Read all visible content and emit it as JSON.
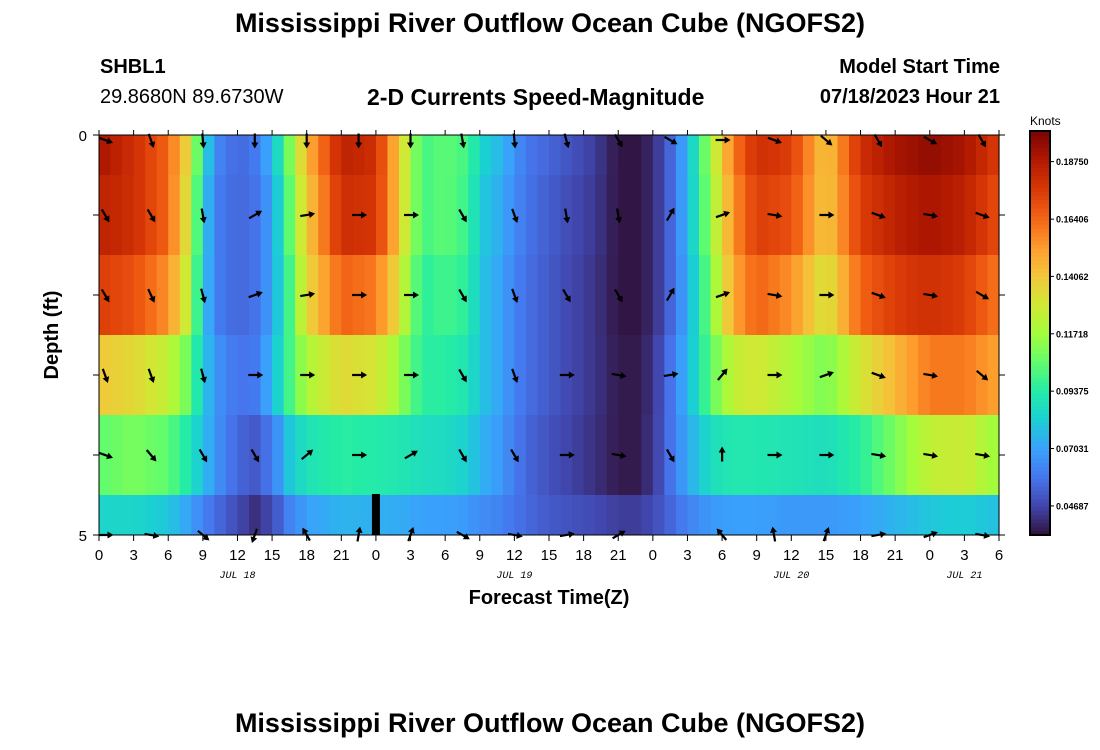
{
  "title": "Mississippi River Outflow Ocean Cube (NGOFS2)",
  "second_title": "Mississippi River Outflow Ocean Cube (NGOFS2)",
  "station": {
    "name": "SHBL1",
    "coords": "29.8680N  89.6730W"
  },
  "plot_title": "2-D Currents Speed-Magnitude",
  "model_start": {
    "label": "Model Start Time",
    "value": "07/18/2023 Hour 21"
  },
  "colors": {
    "arrow": "#000000",
    "now_marker": "#000000"
  },
  "chart_data": {
    "type": "heatmap",
    "xlabel": "Forecast Time(Z)",
    "ylabel": "Depth (ft)",
    "y_ticks": [
      "0",
      "5"
    ],
    "y_range": [
      0,
      5
    ],
    "depth_levels": 5,
    "x_hours_per_tick": 3,
    "x_tick_labels": [
      "0",
      "3",
      "6",
      "9",
      "12",
      "15",
      "18",
      "21",
      "0",
      "3",
      "6",
      "9",
      "12",
      "15",
      "18",
      "21",
      "0",
      "3",
      "6",
      "9",
      "12",
      "15",
      "18",
      "21",
      "0",
      "3",
      "6"
    ],
    "date_labels": [
      {
        "label": "JUL 18",
        "tick_index": 4
      },
      {
        "label": "JUL 19",
        "tick_index": 12
      },
      {
        "label": "JUL 20",
        "tick_index": 20
      },
      {
        "label": "JUL 21",
        "tick_index": 25
      }
    ],
    "now_marker_hour": 24,
    "colorbar": {
      "unit": "Knots",
      "min": 0.035,
      "max": 0.2,
      "tick_values": [
        0.1875,
        0.164,
        0.14062,
        0.11718,
        0.09375,
        0.07031,
        0.04687
      ],
      "tick_labels": [
        "0.18750",
        "0.16406",
        "0.14062",
        "0.11718",
        "0.09375",
        "0.07031",
        "0.04687"
      ],
      "colormap": [
        "#30123b",
        "#4145ab",
        "#4675ed",
        "#39a2fc",
        "#1bcfd4",
        "#24eca6",
        "#61fc6c",
        "#a4fc3b",
        "#d1e834",
        "#f3c63a",
        "#fe9b2d",
        "#f36315",
        "#d93806",
        "#b11901",
        "#7a0403"
      ]
    },
    "time_profile": {
      "hours": [
        0,
        3,
        6,
        8,
        9,
        10.5,
        12,
        13.5,
        15,
        16.5,
        18,
        21,
        24,
        25.5,
        27,
        28,
        30,
        32,
        33,
        35,
        36,
        37.5,
        39,
        41,
        43,
        45,
        46.5,
        48,
        49.5,
        51,
        53,
        55,
        57,
        60,
        63,
        66,
        69,
        72,
        75,
        78
      ],
      "speed_by_depth": [
        [
          0.19,
          0.18,
          0.165,
          0.13,
          0.085,
          0.062,
          0.055,
          0.06,
          0.075,
          0.11,
          0.145,
          0.185,
          0.18,
          0.15,
          0.118,
          0.1,
          0.105,
          0.1,
          0.085,
          0.075,
          0.066,
          0.058,
          0.055,
          0.05,
          0.045,
          0.036,
          0.036,
          0.04,
          0.055,
          0.075,
          0.118,
          0.16,
          0.18,
          0.175,
          0.14,
          0.18,
          0.19,
          0.195,
          0.19,
          0.175
        ],
        [
          0.185,
          0.18,
          0.165,
          0.125,
          0.08,
          0.06,
          0.055,
          0.058,
          0.07,
          0.105,
          0.14,
          0.18,
          0.178,
          0.15,
          0.118,
          0.1,
          0.105,
          0.098,
          0.082,
          0.072,
          0.064,
          0.057,
          0.053,
          0.048,
          0.044,
          0.036,
          0.036,
          0.04,
          0.055,
          0.075,
          0.115,
          0.155,
          0.175,
          0.17,
          0.14,
          0.175,
          0.185,
          0.19,
          0.185,
          0.17
        ],
        [
          0.175,
          0.17,
          0.155,
          0.12,
          0.078,
          0.06,
          0.055,
          0.058,
          0.07,
          0.1,
          0.135,
          0.165,
          0.16,
          0.14,
          0.112,
          0.095,
          0.1,
          0.095,
          0.08,
          0.07,
          0.062,
          0.056,
          0.052,
          0.047,
          0.043,
          0.036,
          0.036,
          0.04,
          0.055,
          0.072,
          0.11,
          0.15,
          0.165,
          0.155,
          0.13,
          0.165,
          0.175,
          0.18,
          0.175,
          0.16
        ],
        [
          0.14,
          0.135,
          0.125,
          0.105,
          0.08,
          0.065,
          0.058,
          0.06,
          0.075,
          0.1,
          0.12,
          0.135,
          0.13,
          0.12,
          0.105,
          0.095,
          0.095,
          0.09,
          0.08,
          0.07,
          0.062,
          0.056,
          0.052,
          0.047,
          0.043,
          0.037,
          0.037,
          0.042,
          0.058,
          0.075,
          0.105,
          0.125,
          0.13,
          0.12,
          0.11,
          0.13,
          0.145,
          0.16,
          0.16,
          0.15
        ],
        [
          0.105,
          0.11,
          0.105,
          0.09,
          0.078,
          0.064,
          0.055,
          0.052,
          0.06,
          0.08,
          0.09,
          0.095,
          0.093,
          0.092,
          0.09,
          0.088,
          0.087,
          0.083,
          0.075,
          0.067,
          0.06,
          0.054,
          0.05,
          0.046,
          0.042,
          0.037,
          0.037,
          0.043,
          0.058,
          0.072,
          0.088,
          0.092,
          0.092,
          0.09,
          0.088,
          0.095,
          0.11,
          0.125,
          0.128,
          0.115
        ],
        [
          0.085,
          0.085,
          0.08,
          0.07,
          0.062,
          0.055,
          0.048,
          0.042,
          0.048,
          0.062,
          0.07,
          0.075,
          0.074,
          0.073,
          0.072,
          0.07,
          0.07,
          0.068,
          0.065,
          0.062,
          0.058,
          0.055,
          0.052,
          0.05,
          0.048,
          0.045,
          0.045,
          0.048,
          0.055,
          0.062,
          0.068,
          0.07,
          0.07,
          0.068,
          0.068,
          0.07,
          0.075,
          0.08,
          0.082,
          0.078
        ]
      ]
    },
    "arrows": {
      "depth_values": [
        0,
        1,
        2,
        3,
        4,
        5
      ],
      "hours": [
        0,
        4.5,
        9,
        13.5,
        18,
        22.5,
        27,
        31.5,
        36,
        40.5,
        45,
        49.5,
        54,
        58.5,
        63,
        67.5,
        72,
        76.5
      ],
      "direction_deg": [
        [
          110,
          160,
          175,
          180,
          180,
          180,
          180,
          170,
          175,
          165,
          150,
          120,
          90,
          110,
          130,
          150,
          120,
          150
        ],
        [
          150,
          150,
          170,
          60,
          80,
          90,
          90,
          150,
          160,
          170,
          170,
          30,
          70,
          100,
          90,
          110,
          100,
          110
        ],
        [
          150,
          155,
          165,
          70,
          80,
          90,
          90,
          150,
          160,
          150,
          150,
          30,
          70,
          100,
          90,
          110,
          100,
          120
        ],
        [
          160,
          160,
          165,
          90,
          90,
          90,
          90,
          150,
          160,
          90,
          100,
          80,
          40,
          90,
          70,
          110,
          100,
          130
        ],
        [
          110,
          140,
          150,
          150,
          50,
          90,
          60,
          150,
          150,
          90,
          100,
          150,
          0,
          90,
          90,
          100,
          100,
          100
        ],
        [
          90,
          100,
          130,
          200,
          330,
          10,
          20,
          120,
          100,
          80,
          60,
          null,
          320,
          350,
          20,
          80,
          70,
          100
        ]
      ]
    }
  }
}
